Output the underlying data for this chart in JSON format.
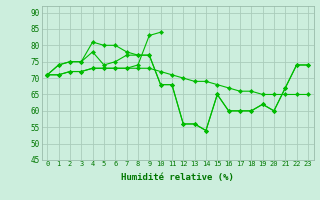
{
  "x": [
    0,
    1,
    2,
    3,
    4,
    5,
    6,
    7,
    8,
    9,
    10,
    11,
    12,
    13,
    14,
    15,
    16,
    17,
    18,
    19,
    20,
    21,
    22,
    23
  ],
  "series": [
    [
      71,
      74,
      75,
      75,
      78,
      74,
      75,
      77,
      77,
      77,
      68,
      68,
      56,
      56,
      54,
      65,
      60,
      60,
      60,
      62,
      60,
      67,
      74,
      74
    ],
    [
      71,
      74,
      75,
      75,
      81,
      80,
      80,
      78,
      77,
      77,
      68,
      68,
      56,
      56,
      54,
      65,
      60,
      60,
      60,
      62,
      60,
      67,
      74,
      74
    ],
    [
      71,
      71,
      72,
      72,
      73,
      73,
      73,
      73,
      73,
      73,
      72,
      71,
      70,
      69,
      69,
      68,
      67,
      66,
      66,
      65,
      65,
      65,
      65,
      65
    ],
    [
      71,
      71,
      72,
      72,
      73,
      73,
      73,
      73,
      74,
      83,
      84,
      null,
      null,
      null,
      null,
      null,
      null,
      null,
      null,
      null,
      null,
      null,
      null,
      null
    ]
  ],
  "line_color": "#00bb00",
  "marker_color": "#00bb00",
  "bg_color": "#cceedd",
  "grid_major_color": "#bbddcc",
  "grid_minor_color": "#ddeeee",
  "axis_label": "Humidité relative (%)",
  "ylim": [
    45,
    92
  ],
  "yticks": [
    45,
    50,
    55,
    60,
    65,
    70,
    75,
    80,
    85,
    90
  ],
  "xlim": [
    -0.5,
    23.5
  ],
  "xticks": [
    0,
    1,
    2,
    3,
    4,
    5,
    6,
    7,
    8,
    9,
    10,
    11,
    12,
    13,
    14,
    15,
    16,
    17,
    18,
    19,
    20,
    21,
    22,
    23
  ],
  "tick_fontsize": 5,
  "label_fontsize": 6.5,
  "linewidth": 0.8,
  "markersize": 2.2
}
